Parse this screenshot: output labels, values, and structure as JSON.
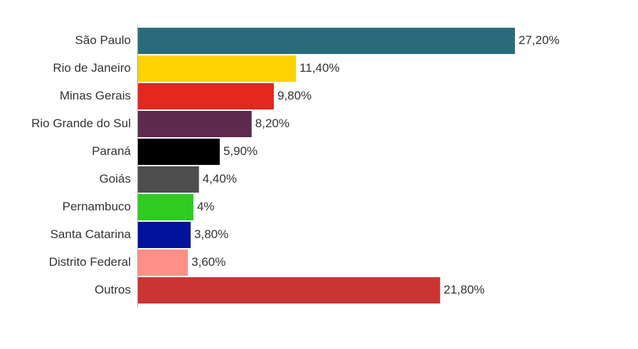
{
  "chart_data": {
    "type": "bar",
    "orientation": "horizontal",
    "categories": [
      "São Paulo",
      "Rio de Janeiro",
      "Minas Gerais",
      "Rio Grande do Sul",
      "Paraná",
      "Goiás",
      "Pernambuco",
      "Santa Catarina",
      "Distrito Federal",
      "Outros"
    ],
    "values": [
      27.2,
      11.4,
      9.8,
      8.2,
      5.9,
      4.4,
      4,
      3.8,
      3.6,
      21.8
    ],
    "value_labels": [
      "27,20%",
      "11,40%",
      "9,80%",
      "8,20%",
      "5,90%",
      "4,40%",
      "4%",
      "3,80%",
      "3,60%",
      "21,80%"
    ],
    "colors": [
      "#2a6b7b",
      "#fcd200",
      "#e3281d",
      "#5e2a4e",
      "#000000",
      "#4d4d4d",
      "#2ecc21",
      "#00139a",
      "#ff8f87",
      "#cc3333"
    ]
  }
}
